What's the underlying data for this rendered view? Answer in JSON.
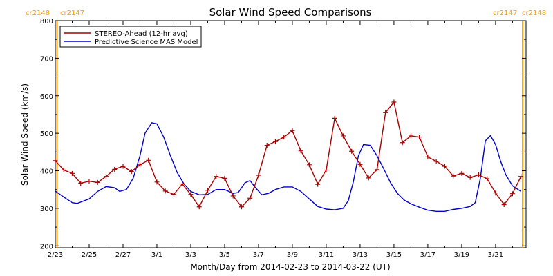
{
  "chart_data": {
    "type": "line",
    "title": "Solar Wind Speed Comparisons",
    "xlabel": "Month/Day from 2014-02-23 to 2014-03-22 (UT)",
    "ylabel": "Solar Wind Speed (km/s)",
    "x_unit": "days since 2014-02-23 00:00 UT",
    "xlim": [
      0,
      27.8
    ],
    "ylim": [
      195,
      800
    ],
    "y_ticks": [
      200,
      300,
      400,
      500,
      600,
      700,
      800
    ],
    "x_ticks": [
      {
        "x": 0,
        "label": "2/23"
      },
      {
        "x": 2,
        "label": "2/25"
      },
      {
        "x": 4,
        "label": "2/27"
      },
      {
        "x": 6,
        "label": "3/1"
      },
      {
        "x": 8,
        "label": "3/3"
      },
      {
        "x": 10,
        "label": "3/5"
      },
      {
        "x": 12,
        "label": "3/7"
      },
      {
        "x": 14,
        "label": "3/9"
      },
      {
        "x": 16,
        "label": "3/11"
      },
      {
        "x": 18,
        "label": "3/13"
      },
      {
        "x": 20,
        "label": "3/15"
      },
      {
        "x": 22,
        "label": "3/17"
      },
      {
        "x": 24,
        "label": "3/19"
      },
      {
        "x": 26,
        "label": "3/21"
      }
    ],
    "vertical_markers": [
      {
        "x": 0.1,
        "color": "#ff9900"
      },
      {
        "x": 27.6,
        "color": "#ff9900"
      }
    ],
    "corner_labels": {
      "left": [
        "cr2148",
        "cr2147"
      ],
      "right": [
        "cr2147",
        "cr2148"
      ],
      "color": "#ff9900"
    },
    "legend_position": "top-left",
    "series": [
      {
        "name": "STEREO-Ahead (12-hr avg)",
        "color": "#aa0000",
        "marker": "plus",
        "points": [
          [
            0.0,
            427
          ],
          [
            0.5,
            402
          ],
          [
            1.0,
            393
          ],
          [
            1.5,
            367
          ],
          [
            2.0,
            372
          ],
          [
            2.5,
            369
          ],
          [
            3.0,
            385
          ],
          [
            3.5,
            404
          ],
          [
            4.0,
            412
          ],
          [
            4.5,
            398
          ],
          [
            5.0,
            416
          ],
          [
            5.5,
            428
          ],
          [
            6.0,
            370
          ],
          [
            6.5,
            346
          ],
          [
            7.0,
            337
          ],
          [
            7.5,
            365
          ],
          [
            8.0,
            337
          ],
          [
            8.5,
            304
          ],
          [
            9.0,
            348
          ],
          [
            9.5,
            385
          ],
          [
            10.0,
            380
          ],
          [
            10.5,
            333
          ],
          [
            11.0,
            304
          ],
          [
            11.5,
            327
          ],
          [
            12.0,
            388
          ],
          [
            12.5,
            468
          ],
          [
            13.0,
            478
          ],
          [
            13.5,
            490
          ],
          [
            14.0,
            507
          ],
          [
            14.5,
            453
          ],
          [
            15.0,
            416
          ],
          [
            15.5,
            364
          ],
          [
            16.0,
            402
          ],
          [
            16.5,
            540
          ],
          [
            17.0,
            493
          ],
          [
            17.5,
            452
          ],
          [
            18.0,
            417
          ],
          [
            18.5,
            381
          ],
          [
            19.0,
            403
          ],
          [
            19.5,
            555
          ],
          [
            20.0,
            583
          ],
          [
            20.5,
            475
          ],
          [
            21.0,
            493
          ],
          [
            21.5,
            490
          ],
          [
            22.0,
            437
          ],
          [
            22.5,
            425
          ],
          [
            23.0,
            412
          ],
          [
            23.5,
            386
          ],
          [
            24.0,
            393
          ],
          [
            24.5,
            382
          ],
          [
            25.0,
            389
          ],
          [
            25.5,
            379
          ],
          [
            26.0,
            341
          ],
          [
            26.5,
            310
          ],
          [
            27.0,
            339
          ],
          [
            27.5,
            385
          ]
        ]
      },
      {
        "name": "Predictive Science MAS Model",
        "color": "#0000cc",
        "marker": "none",
        "points": [
          [
            0.0,
            346
          ],
          [
            0.5,
            330
          ],
          [
            1.0,
            315
          ],
          [
            1.3,
            313
          ],
          [
            2.0,
            325
          ],
          [
            2.5,
            345
          ],
          [
            3.0,
            358
          ],
          [
            3.5,
            355
          ],
          [
            3.8,
            345
          ],
          [
            4.2,
            350
          ],
          [
            4.6,
            380
          ],
          [
            5.0,
            440
          ],
          [
            5.3,
            500
          ],
          [
            5.7,
            528
          ],
          [
            6.0,
            525
          ],
          [
            6.4,
            490
          ],
          [
            6.8,
            440
          ],
          [
            7.2,
            395
          ],
          [
            7.6,
            365
          ],
          [
            8.0,
            345
          ],
          [
            8.5,
            336
          ],
          [
            9.0,
            337
          ],
          [
            9.5,
            350
          ],
          [
            10.0,
            350
          ],
          [
            10.5,
            340
          ],
          [
            10.8,
            342
          ],
          [
            11.2,
            368
          ],
          [
            11.5,
            374
          ],
          [
            11.8,
            356
          ],
          [
            12.2,
            336
          ],
          [
            12.6,
            340
          ],
          [
            13.0,
            350
          ],
          [
            13.5,
            357
          ],
          [
            14.0,
            357
          ],
          [
            14.5,
            345
          ],
          [
            15.0,
            325
          ],
          [
            15.5,
            305
          ],
          [
            16.0,
            298
          ],
          [
            16.5,
            296
          ],
          [
            17.0,
            300
          ],
          [
            17.3,
            320
          ],
          [
            17.6,
            370
          ],
          [
            17.9,
            440
          ],
          [
            18.2,
            470
          ],
          [
            18.6,
            468
          ],
          [
            19.0,
            440
          ],
          [
            19.4,
            405
          ],
          [
            19.8,
            368
          ],
          [
            20.2,
            340
          ],
          [
            20.6,
            322
          ],
          [
            21.0,
            312
          ],
          [
            21.5,
            303
          ],
          [
            22.0,
            295
          ],
          [
            22.5,
            292
          ],
          [
            23.0,
            292
          ],
          [
            23.5,
            297
          ],
          [
            24.0,
            300
          ],
          [
            24.5,
            305
          ],
          [
            24.8,
            315
          ],
          [
            25.1,
            380
          ],
          [
            25.4,
            480
          ],
          [
            25.7,
            494
          ],
          [
            26.0,
            470
          ],
          [
            26.3,
            425
          ],
          [
            26.6,
            390
          ],
          [
            27.0,
            360
          ],
          [
            27.5,
            345
          ]
        ]
      }
    ]
  }
}
